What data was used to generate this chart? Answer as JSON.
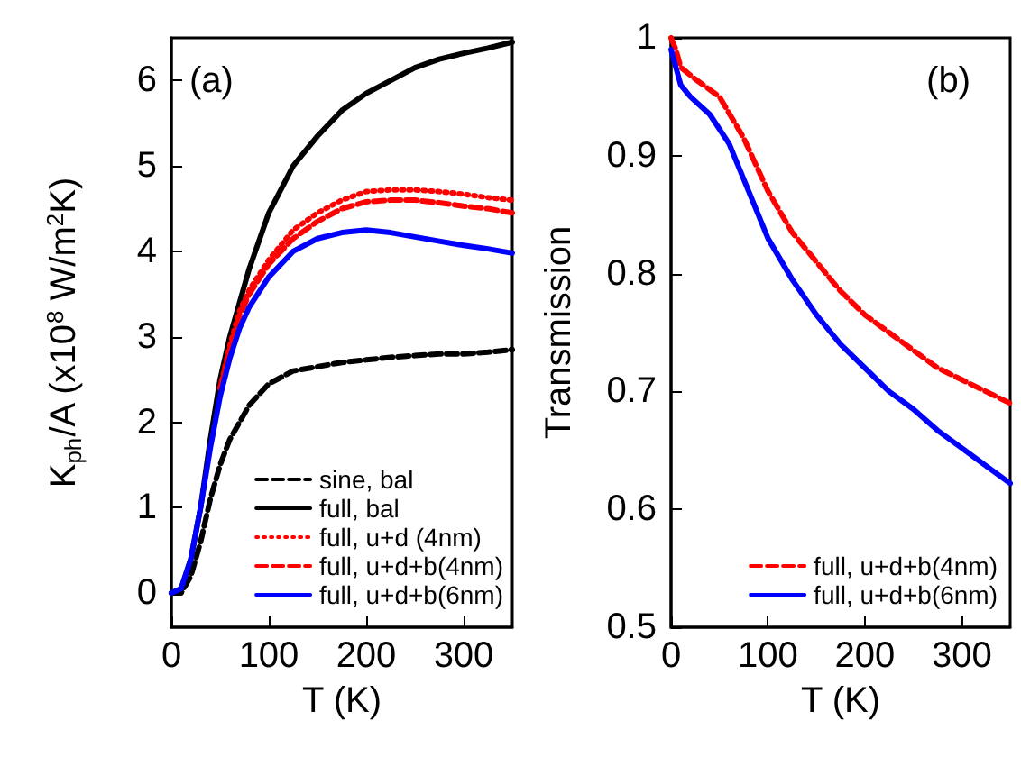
{
  "chart_data": [
    {
      "type": "line",
      "xlabel": "T (K)",
      "ylabel": "K$_{ph}$/A (x10$^{8}$ W/m$^{2}$K)",
      "annotations": [
        "(a)"
      ],
      "xlim": [
        0,
        350
      ],
      "xticks": [
        0,
        100,
        200,
        300
      ],
      "ylim": [
        -0.4,
        6.5
      ],
      "yticks": [
        0,
        1,
        2,
        3,
        4,
        5,
        6
      ],
      "legend": "bottom right",
      "x": [
        0,
        10,
        20,
        30,
        40,
        50,
        60,
        70,
        80,
        100,
        125,
        150,
        175,
        200,
        225,
        250,
        275,
        300,
        325,
        350
      ],
      "series": [
        {
          "name": "sine, bal",
          "color": "#000000",
          "line_style": "dashed",
          "values": [
            0,
            0,
            0.2,
            0.6,
            1.1,
            1.5,
            1.8,
            2.0,
            2.2,
            2.45,
            2.6,
            2.65,
            2.7,
            2.73,
            2.76,
            2.78,
            2.8,
            2.8,
            2.82,
            2.85
          ]
        },
        {
          "name": "full, bal",
          "color": "#000000",
          "line_style": "solid",
          "values": [
            0,
            0.05,
            0.4,
            1.0,
            1.8,
            2.5,
            3.0,
            3.4,
            3.8,
            4.45,
            5.0,
            5.35,
            5.65,
            5.85,
            6.0,
            6.15,
            6.25,
            6.32,
            6.38,
            6.45
          ]
        },
        {
          "name": "full, u+d (4nm)",
          "color": "#ff0000",
          "line_style": "dotted",
          "values": [
            null,
            null,
            null,
            null,
            null,
            2.4,
            2.9,
            3.3,
            3.55,
            3.9,
            4.25,
            4.45,
            4.6,
            4.7,
            4.72,
            4.72,
            4.7,
            4.67,
            4.63,
            4.6
          ]
        },
        {
          "name": "full, u+d+b(4nm)",
          "color": "#ff0000",
          "line_style": "dashed",
          "values": [
            null,
            null,
            null,
            null,
            null,
            2.4,
            2.85,
            3.25,
            3.5,
            3.85,
            4.15,
            4.35,
            4.5,
            4.58,
            4.6,
            4.6,
            4.57,
            4.53,
            4.5,
            4.45
          ]
        },
        {
          "name": "full, u+d+b(6nm)",
          "color": "#0000ff",
          "line_style": "solid",
          "values": [
            0,
            0.05,
            0.4,
            1.0,
            1.7,
            2.3,
            2.75,
            3.1,
            3.35,
            3.7,
            4.0,
            4.15,
            4.22,
            4.25,
            4.22,
            4.17,
            4.12,
            4.07,
            4.03,
            3.98
          ]
        }
      ]
    },
    {
      "type": "line",
      "xlabel": "T (K)",
      "ylabel": "Transmission",
      "annotations": [
        "(b)"
      ],
      "xlim": [
        0,
        350
      ],
      "xticks": [
        0,
        100,
        200,
        300
      ],
      "ylim": [
        0.5,
        1
      ],
      "yticks": [
        0.5,
        0.6,
        0.7,
        0.8,
        0.9,
        1
      ],
      "legend": "bottom right",
      "series": [
        {
          "name": "full, u+d+b(4nm)",
          "color": "#ff0000",
          "line_style": "dashed",
          "x": [
            0,
            5,
            10,
            25,
            50,
            75,
            100,
            125,
            150,
            175,
            200,
            225,
            250,
            275,
            300,
            325,
            350
          ],
          "values": [
            1.0,
            0.99,
            0.975,
            0.965,
            0.95,
            0.915,
            0.87,
            0.835,
            0.81,
            0.785,
            0.765,
            0.75,
            0.735,
            0.72,
            0.71,
            0.7,
            0.69
          ]
        },
        {
          "name": "full, u+d+b(6nm)",
          "color": "#0000ff",
          "line_style": "solid",
          "x": [
            0,
            5,
            10,
            20,
            40,
            60,
            75,
            100,
            125,
            150,
            175,
            200,
            225,
            250,
            275,
            300,
            325,
            350
          ],
          "values": [
            0.99,
            0.975,
            0.96,
            0.95,
            0.935,
            0.91,
            0.88,
            0.83,
            0.795,
            0.765,
            0.74,
            0.72,
            0.7,
            0.685,
            0.667,
            0.652,
            0.637,
            0.622
          ]
        }
      ]
    }
  ]
}
